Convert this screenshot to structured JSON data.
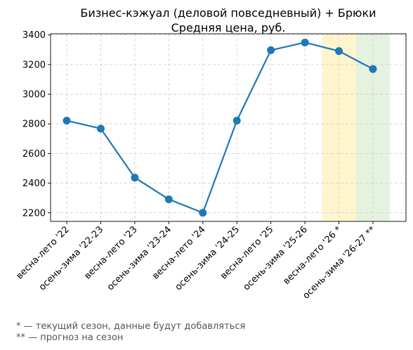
{
  "chart_data": {
    "type": "line",
    "title": [
      "Бизнес-кэжуал (деловой повседневный) + Брюки",
      "Средняя цена, руб."
    ],
    "xlabel": "",
    "ylabel": "",
    "categories": [
      "весна-лето '22",
      "осень-зима '22-23",
      "весна-лето '23",
      "осень-зима '23-24",
      "весна-лето '24",
      "осень-зима '24-25",
      "весна-лето '25",
      "осень-зима '25-26",
      "весна-лето '26 *",
      "осень-зима '26-27 **"
    ],
    "series": [
      {
        "values": [
          2822,
          2768,
          2437,
          2291,
          2200,
          2822,
          3297,
          3349,
          3291,
          3170
        ]
      }
    ],
    "yticks": [
      2200,
      2400,
      2600,
      2800,
      3000,
      3200,
      3400
    ],
    "ylim": [
      2142,
      3408
    ],
    "grid": true,
    "line_color": "#1f77b4",
    "highlights": [
      {
        "category_index": 8,
        "color": "#fff5cc"
      },
      {
        "category_index": 9,
        "color": "#e6f2e0"
      }
    ]
  },
  "footnotes": {
    "current": "* — текущий сезон, данные будут добавляться",
    "forecast": "** — прогноз на сезон"
  }
}
